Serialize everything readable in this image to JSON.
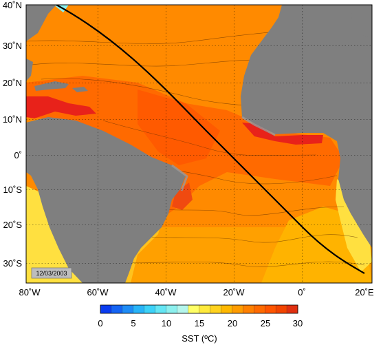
{
  "map": {
    "date_stamp": "12/03/2003",
    "lat_ticks": [
      "40˚N",
      "30˚N",
      "20˚N",
      "10˚N",
      "0˚",
      "10˚S",
      "20˚S",
      "30˚S"
    ],
    "lon_ticks": [
      "80˚W",
      "60˚W",
      "40˚W",
      "20˚W",
      "0˚",
      "20˚E"
    ],
    "land_color": "#7f7f7f",
    "shelf_color": "#9a9a9a",
    "track_color": "#000000"
  },
  "colorbar": {
    "title": "SST (ºC)",
    "ticks": [
      "0",
      "5",
      "10",
      "15",
      "20",
      "25",
      "30"
    ],
    "colors": [
      "#0a3cf0",
      "#1464f4",
      "#1e8cf6",
      "#28b4f8",
      "#3cd2f8",
      "#64e6f4",
      "#8cf0ee",
      "#b4f6ec",
      "#ffff66",
      "#ffea3c",
      "#ffd21e",
      "#ffb800",
      "#ff9c00",
      "#ff8000",
      "#ff6a00",
      "#ff5500",
      "#f24400",
      "#e03010"
    ]
  }
}
